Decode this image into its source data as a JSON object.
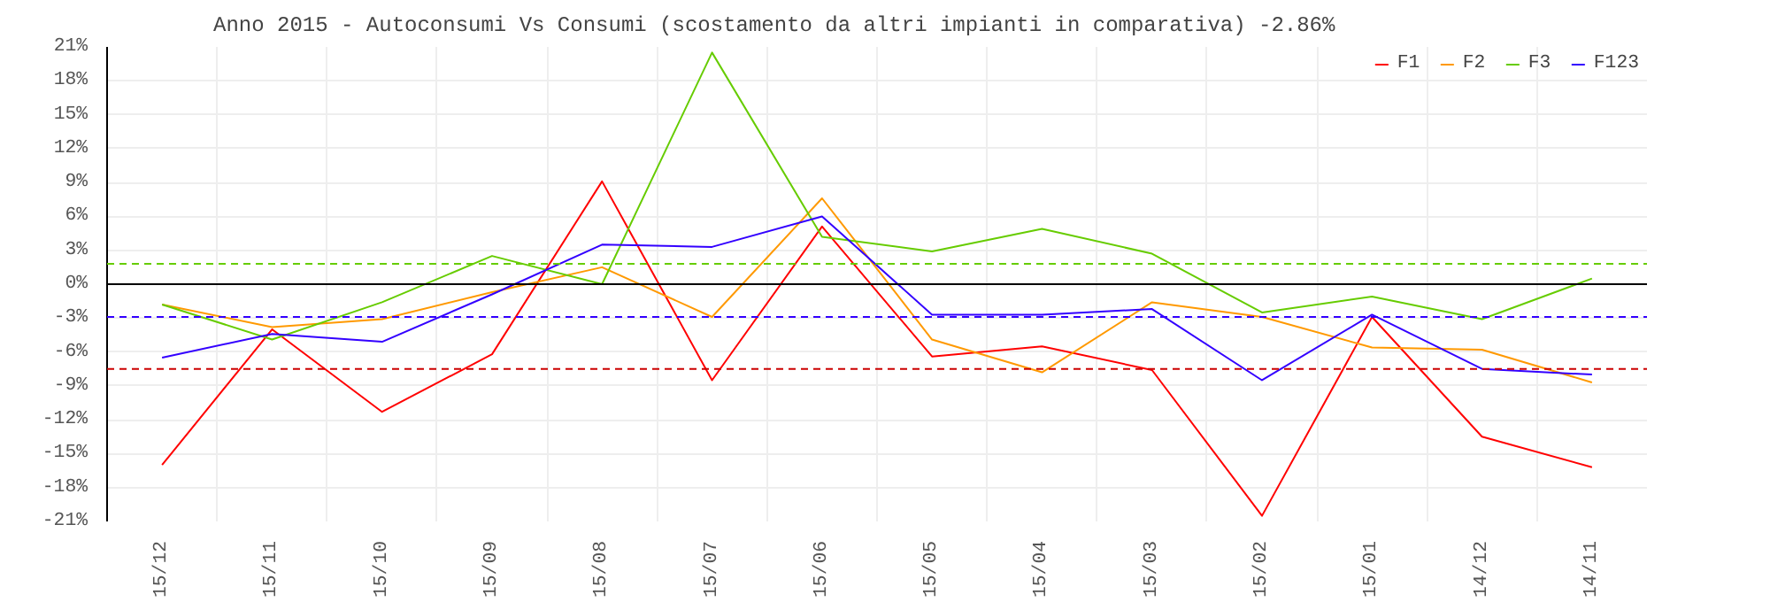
{
  "chart_data": {
    "type": "line",
    "title": "Anno 2015 - Autoconsumi Vs Consumi (scostamento da altri impianti in comparativa) -2.86%",
    "categories": [
      "15/12",
      "15/11",
      "15/10",
      "15/09",
      "15/08",
      "15/07",
      "15/06",
      "15/05",
      "15/04",
      "15/03",
      "15/02",
      "15/01",
      "14/12",
      "14/11"
    ],
    "series": [
      {
        "name": "F1",
        "color": "#ff0000",
        "values": [
          -16,
          -4,
          -11.3,
          -6.2,
          9.1,
          -8.5,
          5.1,
          -6.4,
          -5.5,
          -7.6,
          -20.5,
          -2.9,
          -13.5,
          -16.2
        ]
      },
      {
        "name": "F2",
        "color": "#ff9900",
        "values": [
          -1.8,
          -3.8,
          -3.1,
          -0.7,
          1.5,
          -2.9,
          7.6,
          -4.9,
          -7.8,
          -1.6,
          -2.9,
          -5.6,
          -5.8,
          -8.7
        ]
      },
      {
        "name": "F3",
        "color": "#66cc00",
        "values": [
          -1.8,
          -4.9,
          -1.6,
          2.5,
          0,
          20.5,
          4.2,
          2.9,
          4.9,
          2.7,
          -2.5,
          -1.1,
          -3.1,
          0.5
        ]
      },
      {
        "name": "F123",
        "color": "#3300ff",
        "values": [
          -6.5,
          -4.4,
          -5.1,
          -0.9,
          3.5,
          3.3,
          6,
          -2.7,
          -2.7,
          -2.2,
          -8.5,
          -2.7,
          -7.5,
          -8
        ]
      }
    ],
    "ylim": [
      -21,
      21
    ],
    "yticks": [
      {
        "value": -21,
        "label": "-21%"
      },
      {
        "value": -18,
        "label": "-18%"
      },
      {
        "value": -15,
        "label": "-15%"
      },
      {
        "value": -12,
        "label": "-12%"
      },
      {
        "value": -9,
        "label": "-9%"
      },
      {
        "value": -6,
        "label": "-6%"
      },
      {
        "value": -3,
        "label": "-3%"
      },
      {
        "value": 0,
        "label": "0%"
      },
      {
        "value": 3,
        "label": "3%"
      },
      {
        "value": 6,
        "label": "6%"
      },
      {
        "value": 9,
        "label": "9%"
      },
      {
        "value": 12,
        "label": "12%"
      },
      {
        "value": 15,
        "label": "15%"
      },
      {
        "value": 18,
        "label": "18%"
      },
      {
        "value": 21,
        "label": "21%"
      }
    ],
    "ref_lines": [
      {
        "axis": "y",
        "value": 0,
        "color": "#000000",
        "line_style": "solid"
      },
      {
        "axis": "y",
        "value": 1.8,
        "color": "#66cc00",
        "line_style": "dashed"
      },
      {
        "axis": "y",
        "value": -2.9,
        "color": "#3300ff",
        "line_style": "dashed"
      },
      {
        "axis": "y",
        "value": -7.5,
        "color": "#cc0000",
        "line_style": "dashed"
      }
    ],
    "grid": true,
    "legend": "top right",
    "marker": "none",
    "line_style": "solid"
  }
}
